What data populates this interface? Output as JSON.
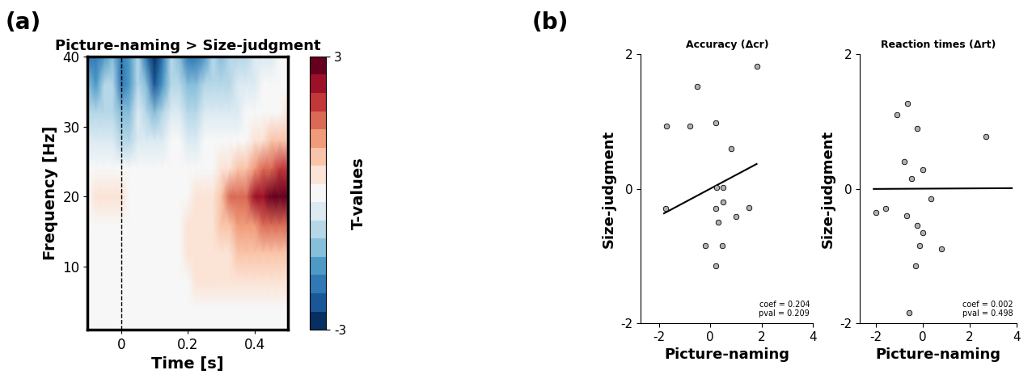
{
  "panel_labels": [
    "(a)",
    "(b)"
  ],
  "chart_data": [
    {
      "type": "heatmap",
      "title": "Picture-naming > Size-judgment",
      "x_label": "Time [s]",
      "y_label": "Frequency [Hz]",
      "x": [
        -0.1,
        -0.075,
        -0.05,
        -0.025,
        0.0,
        0.025,
        0.05,
        0.075,
        0.1,
        0.125,
        0.15,
        0.175,
        0.2,
        0.225,
        0.25,
        0.275,
        0.3,
        0.325,
        0.35,
        0.375,
        0.4,
        0.425,
        0.45,
        0.475,
        0.5
      ],
      "y": [
        1,
        4,
        8,
        12,
        16,
        20,
        24,
        28,
        32,
        36,
        40
      ],
      "values": [
        [
          0.0,
          0.0,
          0.0,
          0.0,
          0.0,
          0.0,
          0.0,
          0.0,
          0.0,
          0.0,
          0.0,
          0.0,
          0.0,
          0.0,
          0.0,
          0.0,
          0.0,
          0.0,
          0.0,
          0.0,
          0.0,
          0.0,
          0.0,
          0.0,
          0.0
        ],
        [
          0.0,
          0.0,
          0.0,
          0.0,
          0.0,
          0.0,
          0.0,
          0.0,
          0.0,
          0.0,
          0.0,
          0.0,
          0.0,
          0.0,
          0.0,
          0.0,
          0.0,
          0.0,
          0.0,
          0.0,
          0.0,
          0.0,
          0.0,
          0.0,
          0.0
        ],
        [
          0.0,
          0.0,
          0.0,
          0.0,
          0.0,
          0.0,
          0.0,
          0.0,
          0.0,
          0.0,
          0.0,
          0.1,
          0.1,
          0.2,
          0.2,
          0.3,
          0.3,
          0.3,
          0.4,
          0.4,
          0.4,
          0.4,
          0.4,
          0.4,
          0.5
        ],
        [
          0.0,
          0.0,
          0.0,
          0.0,
          0.0,
          0.0,
          0.0,
          0.0,
          0.0,
          0.1,
          0.1,
          0.1,
          0.2,
          0.2,
          0.3,
          0.4,
          0.5,
          0.5,
          0.6,
          0.6,
          0.6,
          0.6,
          0.6,
          0.7,
          0.8
        ],
        [
          0.0,
          0.0,
          0.1,
          0.1,
          0.1,
          0.1,
          0.1,
          0.1,
          0.1,
          0.1,
          0.1,
          0.1,
          0.2,
          0.2,
          0.3,
          0.4,
          0.6,
          0.8,
          1.0,
          1.0,
          1.2,
          1.4,
          1.6,
          1.6,
          1.8
        ],
        [
          0.1,
          0.2,
          0.2,
          0.2,
          0.2,
          0.1,
          0.1,
          0.1,
          0.1,
          0.1,
          0.1,
          0.1,
          0.1,
          0.2,
          0.3,
          0.5,
          0.9,
          1.4,
          1.7,
          1.6,
          2.2,
          2.6,
          2.8,
          2.9,
          3.0
        ],
        [
          0.0,
          0.0,
          0.0,
          0.0,
          -0.1,
          -0.1,
          0.0,
          0.0,
          0.0,
          0.0,
          0.0,
          0.0,
          0.0,
          0.0,
          0.1,
          0.1,
          0.3,
          0.5,
          0.7,
          0.9,
          1.2,
          1.6,
          1.8,
          2.0,
          2.0
        ],
        [
          -0.3,
          -0.3,
          -0.2,
          -0.2,
          -0.6,
          -0.8,
          -0.2,
          -0.2,
          -0.4,
          -0.3,
          -0.1,
          -0.1,
          -0.2,
          -0.2,
          -0.1,
          -0.1,
          -0.1,
          0.0,
          0.0,
          0.0,
          0.2,
          0.4,
          0.6,
          0.7,
          0.8
        ],
        [
          -0.9,
          -1.0,
          -0.6,
          -0.6,
          -1.4,
          -1.4,
          -0.5,
          -0.8,
          -1.4,
          -1.0,
          -0.3,
          -0.4,
          -0.8,
          -0.8,
          -0.5,
          -0.3,
          -0.4,
          -0.3,
          -0.2,
          -0.1,
          0.0,
          0.0,
          0.0,
          0.1,
          0.2
        ],
        [
          -1.4,
          -1.6,
          -1.0,
          -1.0,
          -1.8,
          -1.6,
          -0.8,
          -1.4,
          -2.2,
          -1.6,
          -0.6,
          -0.8,
          -1.4,
          -1.4,
          -1.0,
          -0.7,
          -0.9,
          -0.7,
          -0.5,
          -0.3,
          -0.2,
          -0.1,
          0.0,
          0.0,
          0.0
        ],
        [
          -1.8,
          -2.0,
          -1.5,
          -1.2,
          -2.0,
          -1.6,
          -1.0,
          -1.8,
          -2.6,
          -2.0,
          -1.0,
          -1.2,
          -1.8,
          -1.8,
          -1.5,
          -1.0,
          -1.2,
          -1.0,
          -0.8,
          -0.6,
          -0.4,
          -0.3,
          -0.2,
          -0.1,
          0.0
        ]
      ],
      "xlim": [
        -0.1,
        0.5
      ],
      "xticks": [
        0,
        0.2,
        0.4
      ],
      "ylim": [
        1,
        40
      ],
      "yticks": [
        10,
        20,
        30,
        40
      ],
      "vline": 0,
      "colorbar_label": "T-values",
      "colorbar_range": [
        -3,
        3
      ],
      "colorbar_ticks": [
        -3,
        3
      ]
    },
    {
      "type": "scatter",
      "title": "Accuracy (Δcr)",
      "x_label": "Picture-naming",
      "y_label": "Size-judgment",
      "x": [
        -1.7,
        -0.8,
        -0.5,
        0.2,
        1.8,
        0.8,
        -1.75,
        0.25,
        0.5,
        0.5,
        0.2,
        1.0,
        1.5,
        0.3,
        -0.2,
        0.45,
        0.2
      ],
      "values": [
        0.93,
        0.93,
        1.52,
        0.98,
        1.82,
        0.6,
        -0.3,
        0.02,
        0.02,
        -0.2,
        -0.3,
        -0.42,
        -0.28,
        -0.5,
        -0.85,
        -0.85,
        -1.15
      ],
      "fit": {
        "slope": 0.204,
        "intercept": 0.0,
        "x": [
          -1.8,
          1.8
        ]
      },
      "annotation": [
        "coef = 0.204",
        "pval = 0.209"
      ],
      "xlim": [
        -2.7,
        4
      ],
      "xticks": [
        -2,
        0,
        2,
        4
      ],
      "ylim": [
        -2,
        2
      ],
      "yticks": [
        -2,
        0,
        2
      ],
      "color": "#b0b0b0"
    },
    {
      "type": "scatter",
      "title": "Reaction times (Δrt)",
      "x_label": "Picture-naming",
      "y_label": "Size-judgment",
      "x": [
        -1.1,
        -0.65,
        -0.8,
        -0.5,
        -0.25,
        0.0,
        2.7,
        -2.0,
        -1.6,
        -0.7,
        0.35,
        -0.25,
        0.0,
        -0.15,
        0.8,
        -0.3,
        -0.6
      ],
      "values": [
        1.1,
        1.27,
        0.4,
        0.15,
        0.9,
        0.28,
        0.78,
        -0.35,
        -0.3,
        -0.4,
        -0.15,
        -0.55,
        -0.65,
        -0.85,
        -0.9,
        -1.15,
        -1.85
      ],
      "fit": {
        "slope": 0.002,
        "intercept": 0.0,
        "x": [
          -2.1,
          3.8
        ]
      },
      "annotation": [
        "coef = 0.002",
        "pval = 0.498"
      ],
      "xlim": [
        -2.7,
        4
      ],
      "xticks": [
        -2,
        0,
        2,
        4
      ],
      "ylim": [
        -2,
        2
      ],
      "yticks": [
        -2,
        0,
        2
      ],
      "color": "#b0b0b0"
    }
  ]
}
